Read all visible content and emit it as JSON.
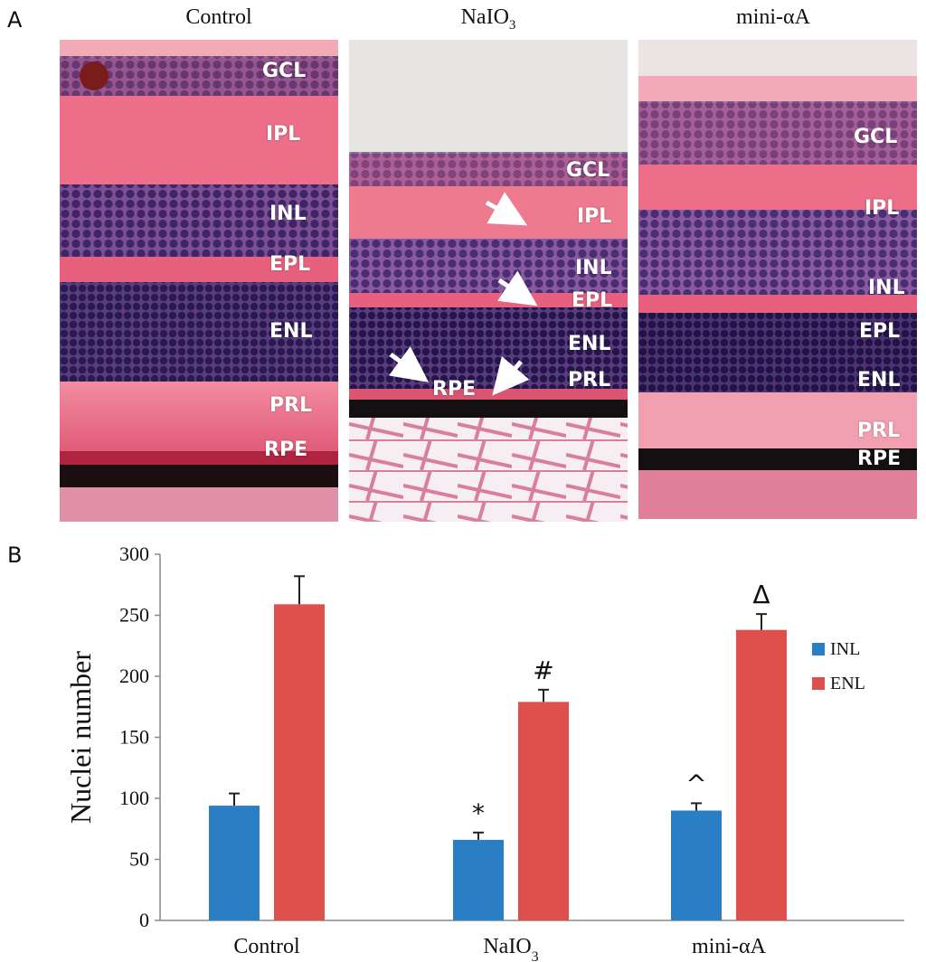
{
  "panels": {
    "a_label": "A",
    "b_label": "B"
  },
  "micrographs": [
    {
      "title_main": "Control",
      "title_sub": "",
      "layers": [
        "GCL",
        "IPL",
        "INL",
        "EPL",
        "ENL",
        "PRL",
        "RPE"
      ]
    },
    {
      "title_main": "NaIO",
      "title_sub": "3",
      "layers": [
        "GCL",
        "IPL",
        "INL",
        "EPL",
        "ENL",
        "PRL",
        "RPE"
      ]
    },
    {
      "title_main": "mini-αA",
      "title_sub": "",
      "layers": [
        "GCL",
        "IPL",
        "INL",
        "EPL",
        "ENL",
        "PRL",
        "RPE"
      ]
    }
  ],
  "colors": {
    "INL": "#2a7ec4",
    "ENL": "#de504c",
    "tissue_pink": "#ea6e86",
    "nuclei_purple": "#4c2f74"
  },
  "chart_data": {
    "type": "bar",
    "categories": [
      "Control",
      "NaIO3",
      "mini-αA"
    ],
    "category_labels": [
      {
        "main": "Control",
        "sub": ""
      },
      {
        "main": "NaIO",
        "sub": "3"
      },
      {
        "main": "mini-αA",
        "sub": ""
      }
    ],
    "series": [
      {
        "name": "INL",
        "values": [
          94,
          66,
          90
        ],
        "errors": [
          10,
          6,
          6
        ],
        "color": "#2a7ec4",
        "annotations": [
          "",
          "*",
          "^"
        ]
      },
      {
        "name": "ENL",
        "values": [
          259,
          179,
          238
        ],
        "errors": [
          23,
          10,
          13
        ],
        "color": "#de504c",
        "annotations": [
          "",
          "#",
          "Δ"
        ]
      }
    ],
    "ylabel": "Nuclei number",
    "xlabel": "",
    "ylim": [
      0,
      300
    ],
    "yticks": [
      0,
      50,
      100,
      150,
      200,
      250,
      300
    ],
    "grid": false,
    "legend": "right"
  }
}
